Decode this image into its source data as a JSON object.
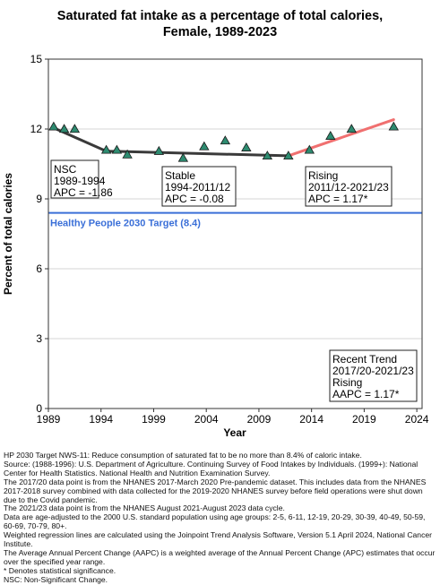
{
  "title_line1": "Saturated fat intake as a percentage of total calories,",
  "title_line2": "Female,  1989-2023",
  "chart_data": {
    "type": "line",
    "xlabel": "Year",
    "ylabel": "Percent of total calories",
    "xlim": [
      1989,
      2024.5
    ],
    "ylim": [
      0,
      15
    ],
    "xticks": [
      1989,
      1994,
      1999,
      2004,
      2009,
      2014,
      2019,
      2024
    ],
    "yticks": [
      0,
      3,
      6,
      9,
      12,
      15
    ],
    "grid": "horizontal",
    "observed": {
      "x": [
        1989.5,
        1990.5,
        1991.5,
        1994.5,
        1995.5,
        1996.5,
        1999.5,
        2001.8,
        2003.8,
        2005.8,
        2007.8,
        2009.8,
        2011.8,
        2013.8,
        2015.8,
        2017.8,
        2021.8
      ],
      "y": [
        12.1,
        12.0,
        12.0,
        11.1,
        11.1,
        10.9,
        11.05,
        10.75,
        11.25,
        11.5,
        11.2,
        10.85,
        10.85,
        11.1,
        11.7,
        12.0,
        12.1
      ],
      "marker_color": "#2e8b70"
    },
    "segments": [
      {
        "x": [
          1989.5,
          1994.5
        ],
        "y": [
          12.05,
          11.05
        ],
        "color": "#3a3a3a"
      },
      {
        "x": [
          1994.5,
          2011.8
        ],
        "y": [
          11.05,
          10.85
        ],
        "color": "#3a3a3a"
      },
      {
        "x": [
          2011.8,
          2021.8
        ],
        "y": [
          10.85,
          12.4
        ],
        "color": "#f07070"
      }
    ],
    "target": {
      "y": 8.4,
      "label": "Healthy People 2030 Target (8.4)",
      "color": "#3a6fd8"
    }
  },
  "annotations": {
    "nsc": {
      "line1": "NSC",
      "line2": "1989-1994",
      "line3": "APC = -1.86"
    },
    "stable": {
      "line1": "Stable",
      "line2": "1994-2011/12",
      "line3": "APC = -0.08"
    },
    "rising": {
      "line1": "Rising",
      "line2": "2011/12-2021/23",
      "line3": "APC =  1.17*"
    },
    "recent": {
      "line1": "Recent Trend",
      "line2": "2017/20-2021/23",
      "line3": "Rising",
      "line4": "AAPC =  1.17*"
    }
  },
  "footnotes": [
    "HP 2030 Target NWS-11: Reduce consumption of saturated fat to be no more than 8.4% of caloric intake.",
    "Source: (1988-1996): U.S. Department of Agriculture. Continuing Survey of Food Intakes by Individuals. (1999+): National Center for Health Statistics. National Health and Nutrition Examination Survey.",
    "The 2017/20 data point is from the NHANES 2017-March 2020 Pre-pandemic dataset. This includes data from the NHANES 2017-2018 survey combined with data collected for the 2019-2020 NHANES survey before field operations were shut down due to the Covid pandemic.",
    "The 2021/23 data point is from the NHANES August 2021-August 2023 data cycle.",
    "Data are age-adjusted to the 2000 U.S. standard population using age groups: 2-5, 6-11, 12-19, 20-29, 30-39, 40-49, 50-59, 60-69, 70-79, 80+.",
    "Weighted regression lines are calculated using the Joinpoint Trend Analysis Software, Version 5.1 April 2024, National Cancer Institute.",
    "The Average Annual Percent Change (AAPC) is a weighted average of the Annual Percent Change (APC) estimates that occur over the specified year range.",
    "* Denotes statistical significance.",
    "NSC: Non-Significant Change."
  ]
}
